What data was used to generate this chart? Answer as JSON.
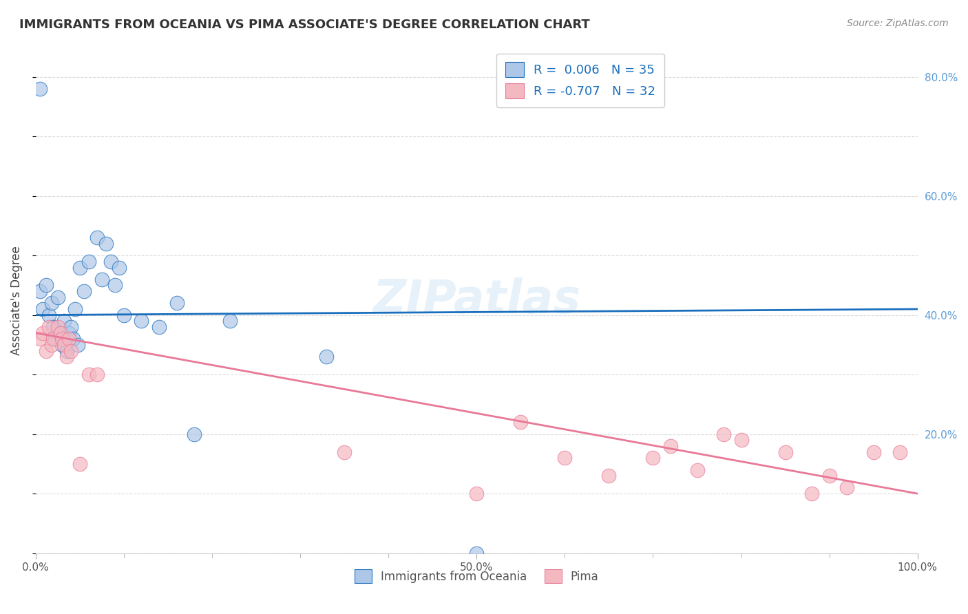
{
  "title": "IMMIGRANTS FROM OCEANIA VS PIMA ASSOCIATE'S DEGREE CORRELATION CHART",
  "source": "Source: ZipAtlas.com",
  "xlabel_bottom": "",
  "ylabel": "Associate's Degree",
  "x_min": 0.0,
  "x_max": 1.0,
  "y_min": 0.0,
  "y_max": 0.85,
  "x_ticks": [
    0.0,
    0.1,
    0.2,
    0.3,
    0.4,
    0.5,
    0.6,
    0.7,
    0.8,
    0.9,
    1.0
  ],
  "y_ticks": [
    0.0,
    0.2,
    0.4,
    0.6,
    0.8
  ],
  "x_tick_labels": [
    "0.0%",
    "",
    "",
    "",
    "",
    "50.0%",
    "",
    "",
    "",
    "",
    "100.0%"
  ],
  "y_tick_labels_right": [
    "",
    "20.0%",
    "40.0%",
    "60.0%",
    "80.0%"
  ],
  "legend_entries": [
    {
      "label": "R =  0.006   N = 35",
      "color": "#aec6e8"
    },
    {
      "label": "R = -0.707   N = 32",
      "color": "#f4b8c1"
    }
  ],
  "legend_R_color": "#1a6fbd",
  "legend_N_color": "#1a6fbd",
  "watermark": "ZIPatlas",
  "blue_scatter_x": [
    0.005,
    0.008,
    0.012,
    0.015,
    0.018,
    0.02,
    0.022,
    0.025,
    0.028,
    0.03,
    0.032,
    0.035,
    0.038,
    0.04,
    0.042,
    0.045,
    0.048,
    0.05,
    0.055,
    0.06,
    0.07,
    0.075,
    0.08,
    0.085,
    0.09,
    0.095,
    0.1,
    0.12,
    0.14,
    0.16,
    0.18,
    0.22,
    0.33,
    0.5,
    0.005
  ],
  "blue_scatter_y": [
    0.44,
    0.41,
    0.45,
    0.4,
    0.42,
    0.38,
    0.36,
    0.43,
    0.37,
    0.35,
    0.39,
    0.34,
    0.37,
    0.38,
    0.36,
    0.41,
    0.35,
    0.48,
    0.44,
    0.49,
    0.53,
    0.46,
    0.52,
    0.49,
    0.45,
    0.48,
    0.4,
    0.39,
    0.38,
    0.42,
    0.2,
    0.39,
    0.33,
    0.0,
    0.78
  ],
  "pink_scatter_x": [
    0.005,
    0.008,
    0.012,
    0.015,
    0.018,
    0.02,
    0.025,
    0.028,
    0.03,
    0.032,
    0.035,
    0.038,
    0.04,
    0.05,
    0.06,
    0.07,
    0.35,
    0.5,
    0.55,
    0.6,
    0.65,
    0.7,
    0.72,
    0.75,
    0.78,
    0.8,
    0.85,
    0.88,
    0.9,
    0.92,
    0.95,
    0.98
  ],
  "pink_scatter_y": [
    0.36,
    0.37,
    0.34,
    0.38,
    0.35,
    0.36,
    0.38,
    0.37,
    0.36,
    0.35,
    0.33,
    0.36,
    0.34,
    0.15,
    0.3,
    0.3,
    0.17,
    0.1,
    0.22,
    0.16,
    0.13,
    0.16,
    0.18,
    0.14,
    0.2,
    0.19,
    0.17,
    0.1,
    0.13,
    0.11,
    0.17,
    0.17
  ],
  "blue_line_x": [
    0.0,
    1.0
  ],
  "blue_line_y": [
    0.4,
    0.41
  ],
  "pink_line_x": [
    0.0,
    1.0
  ],
  "pink_line_y": [
    0.37,
    0.1
  ],
  "grid_color": "#dddddd",
  "blue_color": "#aec6e8",
  "pink_color": "#f4b8c1",
  "blue_line_color": "#1a6fbd",
  "pink_line_color": "#e87896",
  "background_color": "#ffffff"
}
